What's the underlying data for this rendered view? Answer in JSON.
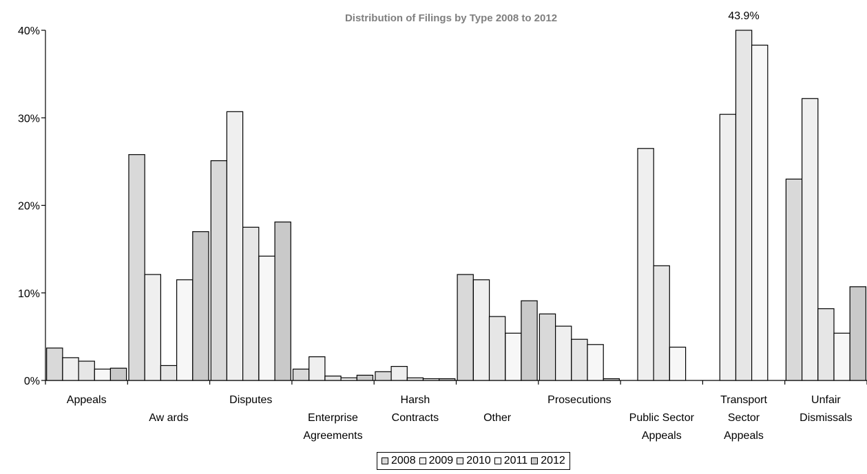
{
  "chart_data": {
    "type": "bar",
    "title": "Distribution of Filings by Type 2008 to 2012",
    "xlabel": "",
    "ylabel": "",
    "ylim": [
      0,
      40
    ],
    "yticks": [
      "0%",
      "10%",
      "20%",
      "30%",
      "40%"
    ],
    "grid": false,
    "legend_position": "bottom",
    "categories": [
      [
        "Appeals"
      ],
      [
        "Aw ards"
      ],
      [
        "Disputes"
      ],
      [
        "Enterprise",
        "Agreements"
      ],
      [
        "Harsh",
        "Contracts"
      ],
      [
        "Other"
      ],
      [
        "Prosecutions"
      ],
      [
        "Public Sector",
        "Appeals"
      ],
      [
        "Transport",
        "Sector",
        "Appeals"
      ],
      [
        "Unfair",
        "Dismissals"
      ]
    ],
    "series": [
      {
        "name": "2008",
        "color": "#d9d9d9",
        "values": [
          3.7,
          25.8,
          25.1,
          1.3,
          1.0,
          12.1,
          7.6,
          0,
          0,
          23.0
        ]
      },
      {
        "name": "2009",
        "color": "#efefef",
        "values": [
          2.6,
          12.1,
          30.7,
          2.7,
          1.6,
          11.5,
          6.2,
          26.5,
          30.4,
          32.2
        ]
      },
      {
        "name": "2010",
        "color": "#e6e6e6",
        "values": [
          2.2,
          1.7,
          17.5,
          0.5,
          0.3,
          7.3,
          4.7,
          13.1,
          43.9,
          8.2
        ]
      },
      {
        "name": "2011",
        "color": "#f7f7f7",
        "values": [
          1.3,
          11.5,
          14.2,
          0.3,
          0.2,
          5.4,
          4.1,
          3.8,
          38.3,
          5.4
        ]
      },
      {
        "name": "2012",
        "color": "#c9c9c9",
        "values": [
          1.4,
          17.0,
          18.1,
          0.6,
          0.2,
          9.1,
          0.2,
          0,
          0,
          10.7
        ]
      }
    ],
    "annotations": [
      {
        "text": "43.9%",
        "category_index": 8,
        "series_index": 2
      }
    ]
  }
}
